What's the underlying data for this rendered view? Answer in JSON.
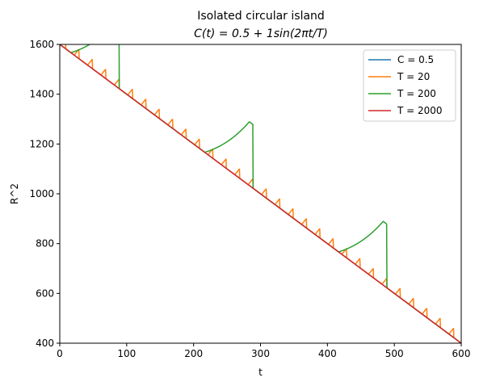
{
  "chart_data": {
    "type": "line",
    "title": "Isolated circular island",
    "subtitle": "C(t) = 0.5 + 1sin(2πt/T)",
    "xlabel": "t",
    "ylabel": "R^2",
    "xlim": [
      0,
      600
    ],
    "ylim": [
      400,
      1600
    ],
    "x_ticks": [
      0,
      100,
      200,
      300,
      400,
      500,
      600
    ],
    "y_ticks": [
      400,
      600,
      800,
      1000,
      1200,
      1400,
      1600
    ],
    "grid": false,
    "legend_position": "top-right",
    "series": [
      {
        "name": "C = 0.5",
        "color": "#1f77b4",
        "model": "constant"
      },
      {
        "name": "T = 20",
        "color": "#ff7f0e",
        "model": "periodic",
        "period": 20
      },
      {
        "name": "T = 200",
        "color": "#2ca02c",
        "model": "periodic",
        "period": 200
      },
      {
        "name": "T = 2000",
        "color": "#d62728",
        "model": "periodic",
        "period": 2000
      }
    ]
  }
}
